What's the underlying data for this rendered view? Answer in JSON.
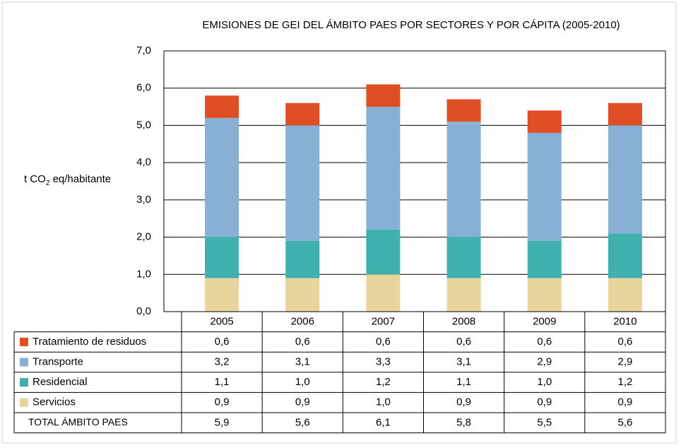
{
  "chart_data": {
    "type": "bar",
    "stacked": true,
    "title": "EMISIONES DE GEI DEL ÁMBITO PAES POR SECTORES Y POR CÁPITA (2005-2010)",
    "y_label": {
      "text": "t CO",
      "subscript": "2",
      "suffix": " eq/habitante"
    },
    "categories": [
      "2005",
      "2006",
      "2007",
      "2008",
      "2009",
      "2010"
    ],
    "series": [
      {
        "name": "Tratamiento  de residuos",
        "color": "#e04e26",
        "values": [
          0.6,
          0.6,
          0.6,
          0.6,
          0.6,
          0.6
        ],
        "value_labels": [
          "0,6",
          "0,6",
          "0,6",
          "0,6",
          "0,6",
          "0,6"
        ]
      },
      {
        "name": "Transporte",
        "color": "#88b0d5",
        "values": [
          3.2,
          3.1,
          3.3,
          3.1,
          2.9,
          2.9
        ],
        "value_labels": [
          "3,2",
          "3,1",
          "3,3",
          "3,1",
          "2,9",
          "2,9"
        ]
      },
      {
        "name": "Residencial",
        "color": "#3fb0ae",
        "values": [
          1.1,
          1.0,
          1.2,
          1.1,
          1.0,
          1.2
        ],
        "value_labels": [
          "1,1",
          "1,0",
          "1,2",
          "1,1",
          "1,0",
          "1,2"
        ]
      },
      {
        "name": "Servicios",
        "color": "#e8d49c",
        "values": [
          0.9,
          0.9,
          1.0,
          0.9,
          0.9,
          0.9
        ],
        "value_labels": [
          "0,9",
          "0,9",
          "1,0",
          "0,9",
          "0,9",
          "0,9"
        ]
      }
    ],
    "totals": {
      "name": "TOTAL ÁMBITO PAES",
      "values": [
        5.9,
        5.6,
        6.1,
        5.8,
        5.5,
        5.6
      ],
      "value_labels": [
        "5,9",
        "5,6",
        "6,1",
        "5,8",
        "5,5",
        "5,6"
      ]
    },
    "ylim": [
      0,
      7
    ],
    "yticks": [
      {
        "value": 0,
        "label": "0,0"
      },
      {
        "value": 1,
        "label": "1,0"
      },
      {
        "value": 2,
        "label": "2,0"
      },
      {
        "value": 3,
        "label": "3,0"
      },
      {
        "value": 4,
        "label": "4,0"
      },
      {
        "value": 5,
        "label": "5,0"
      },
      {
        "value": 6,
        "label": "6,0"
      },
      {
        "value": 7,
        "label": "7,0"
      }
    ],
    "grid": true
  }
}
